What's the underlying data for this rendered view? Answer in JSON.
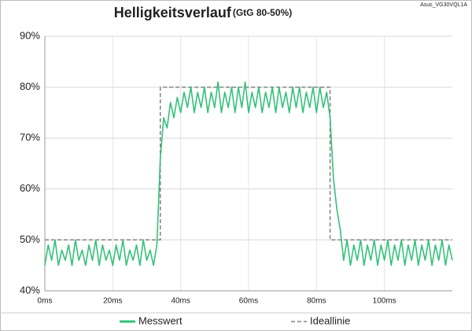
{
  "chart_data": {
    "type": "line",
    "title": "Helligkeitsverlauf",
    "subtitle": "(GtG 80-50%)",
    "annotation": "Asus_VG30VQL1A",
    "x": [
      0,
      1,
      2,
      3,
      4,
      5,
      6,
      7,
      8,
      9,
      10,
      11,
      12,
      13,
      14,
      15,
      16,
      17,
      18,
      19,
      20,
      21,
      22,
      23,
      24,
      25,
      26,
      27,
      28,
      29,
      30,
      31,
      32,
      33,
      34,
      35,
      36,
      37,
      38,
      39,
      40,
      41,
      42,
      43,
      44,
      45,
      46,
      47,
      48,
      49,
      50,
      51,
      52,
      53,
      54,
      55,
      56,
      57,
      58,
      59,
      60,
      61,
      62,
      63,
      64,
      65,
      66,
      67,
      68,
      69,
      70,
      71,
      72,
      73,
      74,
      75,
      76,
      77,
      78,
      79,
      80,
      81,
      82,
      83,
      84,
      85,
      86,
      87,
      88,
      89,
      90,
      91,
      92,
      93,
      94,
      95,
      96,
      97,
      98,
      99,
      100,
      101,
      102,
      103,
      104,
      105,
      106,
      107,
      108,
      109,
      110,
      111,
      112,
      113,
      114,
      115,
      116,
      117,
      118,
      119,
      120
    ],
    "series": [
      {
        "name": "Ideallinie",
        "color": "#808080",
        "dash": true,
        "x": [
          0,
          34,
          34,
          84,
          84,
          120
        ],
        "values": [
          50,
          50,
          80,
          80,
          50,
          50
        ]
      },
      {
        "name": "Messwert",
        "color": "#33c178",
        "dash": false,
        "values": [
          45,
          49,
          46,
          50,
          45,
          48,
          46,
          49,
          45,
          50,
          46,
          48,
          45,
          49,
          46,
          50,
          45,
          49,
          46,
          48,
          45,
          49,
          46,
          50,
          45,
          48,
          46,
          49,
          45,
          50,
          46,
          48,
          45,
          49,
          66,
          74,
          72,
          77,
          74,
          78,
          75,
          79,
          76,
          80,
          75,
          79,
          76,
          80,
          75,
          79,
          76,
          81,
          75,
          79,
          76,
          80,
          75,
          80,
          76,
          81,
          75,
          79,
          76,
          80,
          75,
          79,
          76,
          80,
          75,
          80,
          76,
          79,
          75,
          80,
          76,
          80,
          75,
          79,
          76,
          80,
          75,
          80,
          76,
          79,
          74,
          62,
          56,
          52,
          46,
          50,
          45,
          49,
          46,
          50,
          45,
          49,
          46,
          50,
          45,
          49,
          46,
          50,
          45,
          49,
          46,
          50,
          45,
          49,
          46,
          50,
          45,
          49,
          46,
          50,
          45,
          49,
          46,
          50,
          45,
          49,
          46
        ]
      }
    ],
    "xlim": [
      0,
      120
    ],
    "xticks": [
      {
        "value": 0,
        "label": "0ms"
      },
      {
        "value": 20,
        "label": "20ms"
      },
      {
        "value": 40,
        "label": "40ms"
      },
      {
        "value": 60,
        "label": "60ms"
      },
      {
        "value": 80,
        "label": "80ms"
      },
      {
        "value": 100,
        "label": "100ms"
      }
    ],
    "ylim": [
      40,
      90
    ],
    "yticks": [
      {
        "value": 40,
        "label": "40%"
      },
      {
        "value": 50,
        "label": "50%"
      },
      {
        "value": 60,
        "label": "60%"
      },
      {
        "value": 70,
        "label": "70%"
      },
      {
        "value": 80,
        "label": "80%"
      },
      {
        "value": 90,
        "label": "90%"
      }
    ],
    "grid": true
  }
}
